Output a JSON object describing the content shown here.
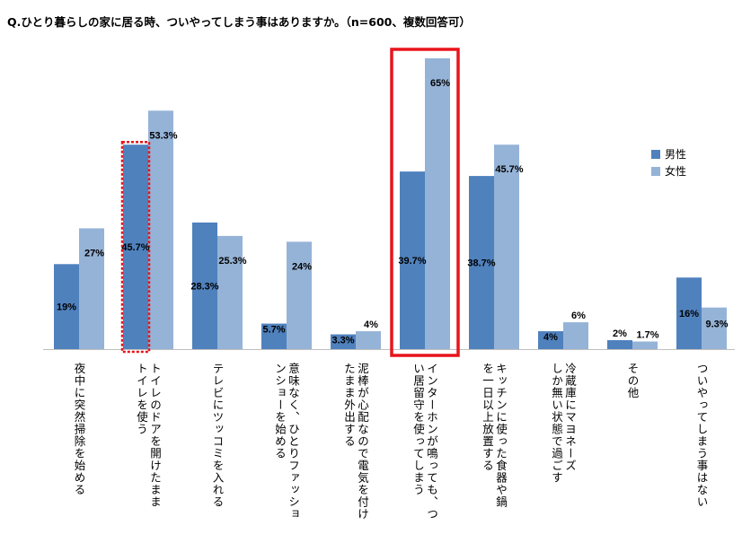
{
  "title": "Q.ひとり暮らしの家に居る時、ついやってしまう事はありますか。（n=600、複数回答可）",
  "colors": {
    "male": "#4F81BD",
    "female": "#95B3D7",
    "highlight": "#E8141B"
  },
  "legend": [
    {
      "label": "男性",
      "color": "#4F81BD"
    },
    {
      "label": "女性",
      "color": "#95B3D7"
    }
  ],
  "chart_data": {
    "type": "bar",
    "title": "Q.ひとり暮らしの家に居る時、ついやってしまう事はありますか。（n=600、複数回答可）",
    "categories": [
      "夜中に突然掃除を始める",
      "トイレのドアを開けたまま\nトイレを使う",
      "テレビにツッコミを入れる",
      "意味なく、ひとりファッショ\nンショーを始める",
      "泥棒が心配なので電気を付け\nたまま外出する",
      "インターホンが鳴っても、つ\nい居留守を使ってしまう",
      "キッチンに使った食器や鍋\nを一日以上放置する",
      "冷蔵庫にマヨネーズ\nしか無い状態で過ごす",
      "その他",
      "ついやってしまう事はない"
    ],
    "series": [
      {
        "name": "男性",
        "values": [
          19,
          45.7,
          28.3,
          5.7,
          3.3,
          39.7,
          38.7,
          4,
          2,
          16
        ],
        "labels": [
          "19%",
          "45.7%",
          "28.3%",
          "5.7%",
          "3.3%",
          "39.7%",
          "38.7%",
          "4%",
          "2%",
          "16%"
        ]
      },
      {
        "name": "女性",
        "values": [
          27,
          53.3,
          25.3,
          24,
          4,
          65,
          45.7,
          6,
          1.7,
          9.3
        ],
        "labels": [
          "27%",
          "53.3%",
          "25.3%",
          "24%",
          "4%",
          "65%",
          "45.7%",
          "6%",
          "1.7%",
          "9.3%"
        ]
      }
    ],
    "ylim": [
      0,
      66
    ],
    "grid": false,
    "legend_position": "right",
    "highlights": [
      {
        "category_index": 1,
        "series": "男性",
        "style": "dotted"
      },
      {
        "category_index": 5,
        "series": "both",
        "style": "solid"
      }
    ]
  }
}
